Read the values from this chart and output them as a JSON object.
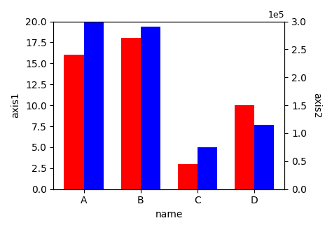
{
  "categories": [
    "A",
    "B",
    "C",
    "D"
  ],
  "red_values": [
    16,
    18,
    3,
    10
  ],
  "blue_values": [
    300000,
    290000,
    75000,
    115000
  ],
  "red_color": "#ff0000",
  "blue_color": "#0000ff",
  "xlabel": "name",
  "ylabel_left": "axis1",
  "ylabel_right": "axis2",
  "ylim_left": [
    0,
    20
  ],
  "ylim_right": [
    0,
    300000
  ],
  "bar_width": 0.35,
  "background_color": "#ffffff"
}
